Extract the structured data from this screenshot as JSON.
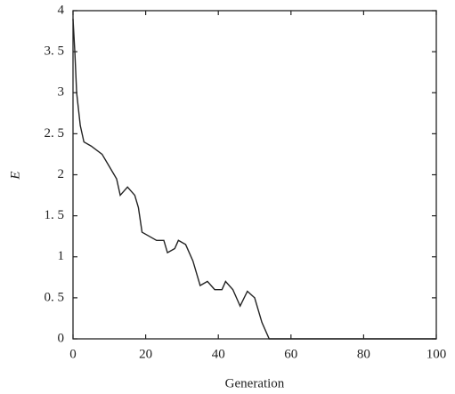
{
  "chart_data": {
    "type": "line",
    "x_label": "Generation",
    "y_label": "E",
    "xlim": [
      0,
      100
    ],
    "xticks": [
      0,
      20,
      40,
      60,
      80,
      100
    ],
    "ylim": [
      0,
      4
    ],
    "yticks": [
      0,
      {
        "value": 0.5,
        "label": "0. 5"
      },
      1,
      {
        "value": 1.5,
        "label": "1. 5"
      },
      2,
      {
        "value": 2.5,
        "label": "2. 5"
      },
      3,
      {
        "value": 3.5,
        "label": "3. 5"
      },
      4
    ],
    "grid": false,
    "series": [
      {
        "color": "#222222",
        "x": [
          0,
          0.5,
          1,
          2,
          3,
          5,
          8,
          10,
          12,
          13,
          15,
          17,
          18,
          19,
          21,
          23,
          25,
          26,
          28,
          29,
          31,
          33,
          35,
          37,
          39,
          41,
          42,
          44,
          46,
          48,
          50,
          52,
          54,
          60,
          80,
          100
        ],
        "values": [
          3.9,
          3.5,
          3.0,
          2.6,
          2.4,
          2.35,
          2.25,
          2.1,
          1.95,
          1.75,
          1.85,
          1.75,
          1.6,
          1.3,
          1.25,
          1.2,
          1.2,
          1.05,
          1.1,
          1.2,
          1.15,
          0.95,
          0.65,
          0.7,
          0.6,
          0.6,
          0.7,
          0.6,
          0.4,
          0.58,
          0.5,
          0.2,
          0,
          0,
          0,
          0
        ]
      }
    ]
  }
}
